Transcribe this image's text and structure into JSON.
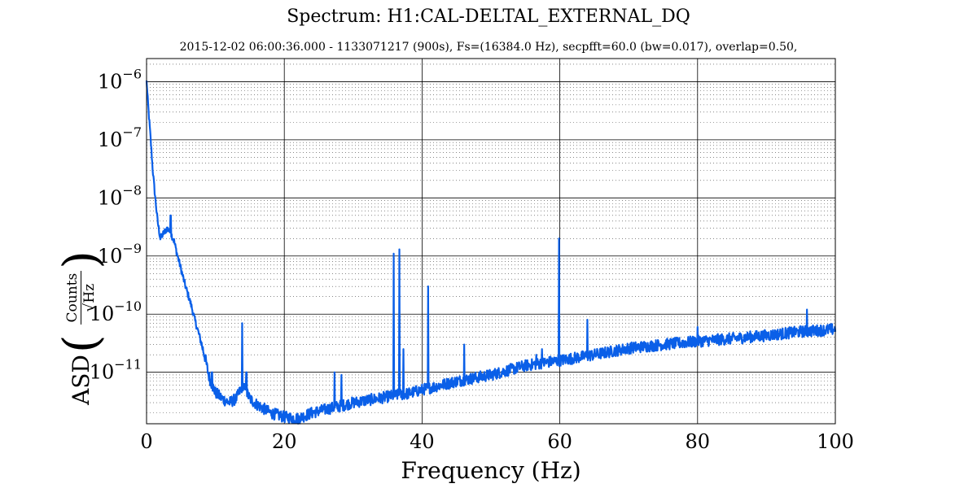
{
  "chart_data": {
    "type": "line",
    "title": "Spectrum: H1:CAL-DELTAL_EXTERNAL_DQ",
    "subtitle": "2015-12-02 06:00:36.000 - 1133071217 (900s), Fs=(16384.0 Hz), secpfft=60.0 (bw=0.017), overlap=0.50,",
    "xlabel": "Frequency (Hz)",
    "ylabel": {
      "prefix": "ASD",
      "unit_numerator": "Counts",
      "unit_denominator": "√Hz"
    },
    "xlim": [
      0,
      100
    ],
    "ylim": [
      1.3e-12,
      2.5e-06
    ],
    "yscale": "log",
    "x_ticks": [
      "0",
      "20",
      "40",
      "60",
      "80",
      "100"
    ],
    "x_tick_values": [
      0,
      20,
      40,
      60,
      80,
      100
    ],
    "y_ticks": [
      {
        "value": 1e-11,
        "mantissa": "10",
        "exponent": "−11"
      },
      {
        "value": 1e-10,
        "mantissa": "10",
        "exponent": "−10"
      },
      {
        "value": 1e-09,
        "mantissa": "10",
        "exponent": "−9"
      },
      {
        "value": 1e-08,
        "mantissa": "10",
        "exponent": "−8"
      },
      {
        "value": 1e-07,
        "mantissa": "10",
        "exponent": "−7"
      },
      {
        "value": 1e-06,
        "mantissa": "10",
        "exponent": "−6"
      }
    ],
    "grid": true,
    "series": [
      {
        "color": "#0a5fe8",
        "baseline_points": [
          [
            0.0,
            1e-06
          ],
          [
            0.3,
            3e-07
          ],
          [
            0.6,
            1e-07
          ],
          [
            0.9,
            3e-08
          ],
          [
            1.2,
            1.2e-08
          ],
          [
            1.6,
            4e-09
          ],
          [
            2.0,
            2e-09
          ],
          [
            2.5,
            2.5e-09
          ],
          [
            3.0,
            3e-09
          ],
          [
            3.5,
            2.5e-09
          ],
          [
            4.0,
            1.8e-09
          ],
          [
            4.5,
            1e-09
          ],
          [
            5.0,
            6e-10
          ],
          [
            5.5,
            3.5e-10
          ],
          [
            6.0,
            2.2e-10
          ],
          [
            6.5,
            1.4e-10
          ],
          [
            7.0,
            8e-11
          ],
          [
            7.5,
            5e-11
          ],
          [
            8.0,
            3e-11
          ],
          [
            8.5,
            1.8e-11
          ],
          [
            9.0,
            9e-12
          ],
          [
            9.5,
            6e-12
          ],
          [
            10.0,
            4.5e-12
          ],
          [
            11.0,
            3.5e-12
          ],
          [
            12.0,
            3e-12
          ],
          [
            13.0,
            3.5e-12
          ],
          [
            14.0,
            6e-12
          ],
          [
            15.0,
            3.5e-12
          ],
          [
            16.0,
            2.8e-12
          ],
          [
            18.0,
            2e-12
          ],
          [
            20.0,
            1.7e-12
          ],
          [
            22.0,
            1.6e-12
          ],
          [
            24.0,
            2e-12
          ],
          [
            26.0,
            2.3e-12
          ],
          [
            28.0,
            2.6e-12
          ],
          [
            30.0,
            3e-12
          ],
          [
            32.0,
            3.3e-12
          ],
          [
            34.0,
            3.6e-12
          ],
          [
            36.0,
            4e-12
          ],
          [
            38.0,
            4.3e-12
          ],
          [
            40.0,
            5e-12
          ],
          [
            45.0,
            7e-12
          ],
          [
            50.0,
            9e-12
          ],
          [
            55.0,
            1.3e-11
          ],
          [
            60.0,
            1.6e-11
          ],
          [
            65.0,
            2e-11
          ],
          [
            70.0,
            2.6e-11
          ],
          [
            75.0,
            3e-11
          ],
          [
            80.0,
            3.4e-11
          ],
          [
            85.0,
            3.8e-11
          ],
          [
            90.0,
            4.3e-11
          ],
          [
            95.0,
            5e-11
          ],
          [
            100.0,
            5.5e-11
          ]
        ],
        "spectral_lines": [
          [
            0.05,
            8e-07
          ],
          [
            1.0,
            1.3e-08
          ],
          [
            3.5,
            5e-09
          ],
          [
            9.5,
            1e-11
          ],
          [
            13.9,
            7e-11
          ],
          [
            14.5,
            1e-11
          ],
          [
            27.3,
            1e-11
          ],
          [
            28.3,
            9e-12
          ],
          [
            35.9,
            1.1e-09
          ],
          [
            36.7,
            1.3e-09
          ],
          [
            37.3,
            2.5e-11
          ],
          [
            40.9,
            3e-10
          ],
          [
            46.1,
            3e-11
          ],
          [
            56.6,
            2e-11
          ],
          [
            57.4,
            2.5e-11
          ],
          [
            59.9,
            2e-09
          ],
          [
            64.0,
            8e-11
          ],
          [
            80.0,
            6e-11
          ],
          [
            95.9,
            1.2e-10
          ]
        ]
      }
    ]
  }
}
